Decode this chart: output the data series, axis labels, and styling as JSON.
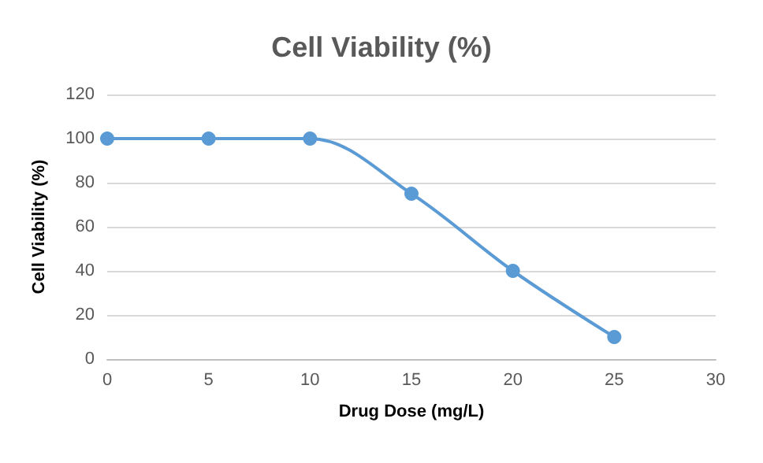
{
  "chart_data": {
    "type": "line",
    "title": "Cell Viability (%)",
    "xlabel": "Drug Dose (mg/L)",
    "ylabel": "Cell Viability (%)",
    "x": [
      0,
      5,
      10,
      15,
      20,
      25
    ],
    "series": [
      {
        "color": "#5b9bd5",
        "values": [
          100,
          100,
          100,
          75,
          40,
          10
        ]
      }
    ],
    "xlim": [
      0,
      30
    ],
    "xticks": [
      0,
      5,
      10,
      15,
      20,
      25,
      30
    ],
    "ylim": [
      0,
      120
    ],
    "yticks": [
      0,
      20,
      40,
      60,
      80,
      100,
      120
    ],
    "grid": "y",
    "marker": "circle",
    "line_style": "solid"
  }
}
